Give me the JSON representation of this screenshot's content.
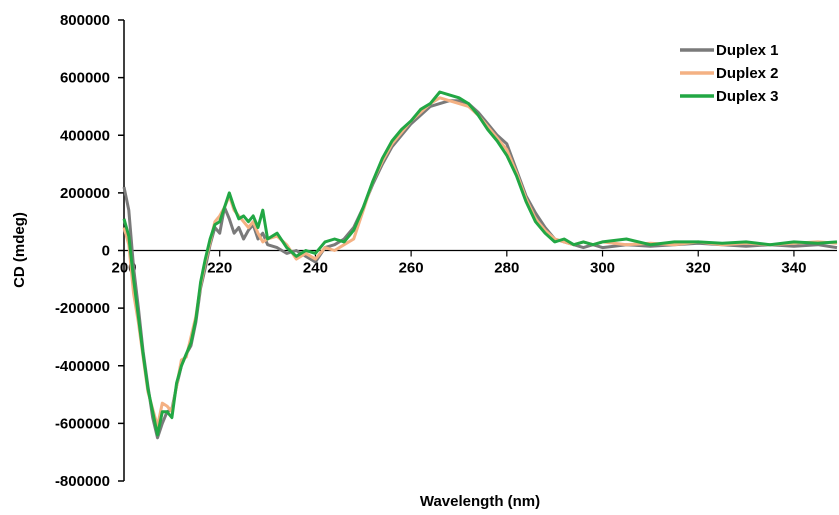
{
  "chart_data": {
    "type": "line",
    "title": "",
    "xlabel": "Wavelength  (nm)",
    "ylabel": "CD (mdeg)",
    "xlim": [
      200,
      349
    ],
    "ylim": [
      -800000,
      800000
    ],
    "x_ticks": [
      200,
      220,
      240,
      260,
      280,
      300,
      320,
      340
    ],
    "y_ticks": [
      800000,
      600000,
      400000,
      200000,
      0,
      -200000,
      -400000,
      -600000,
      -800000
    ],
    "grid": false,
    "legend_position": "top-right",
    "series": [
      {
        "name": "Duplex 1",
        "color": "#7a7a7a",
        "x": [
          200,
          201,
          202,
          203,
          204,
          205,
          206,
          207,
          208,
          209,
          210,
          211,
          212,
          213,
          214,
          215,
          216,
          217,
          218,
          219,
          220,
          221,
          222,
          223,
          224,
          225,
          226,
          227,
          228,
          229,
          230,
          232,
          234,
          236,
          238,
          240,
          242,
          244,
          246,
          248,
          250,
          252,
          254,
          256,
          258,
          260,
          262,
          264,
          266,
          268,
          270,
          272,
          274,
          276,
          278,
          280,
          282,
          284,
          286,
          288,
          290,
          292,
          294,
          296,
          298,
          300,
          305,
          310,
          315,
          320,
          325,
          330,
          335,
          340,
          345,
          349
        ],
        "y": [
          220000,
          140000,
          -60000,
          -200000,
          -350000,
          -470000,
          -580000,
          -650000,
          -600000,
          -560000,
          -550000,
          -470000,
          -400000,
          -360000,
          -330000,
          -250000,
          -130000,
          -60000,
          20000,
          80000,
          60000,
          150000,
          110000,
          60000,
          80000,
          40000,
          70000,
          90000,
          40000,
          60000,
          20000,
          10000,
          -10000,
          0,
          -20000,
          -40000,
          10000,
          20000,
          40000,
          80000,
          150000,
          230000,
          300000,
          360000,
          400000,
          440000,
          470000,
          500000,
          510000,
          520000,
          520000,
          510000,
          480000,
          440000,
          400000,
          370000,
          280000,
          190000,
          130000,
          80000,
          40000,
          30000,
          20000,
          10000,
          20000,
          10000,
          20000,
          15000,
          20000,
          25000,
          20000,
          15000,
          20000,
          15000,
          20000,
          10000
        ]
      },
      {
        "name": "Duplex 2",
        "color": "#f4b183",
        "x": [
          200,
          201,
          202,
          203,
          204,
          205,
          206,
          207,
          208,
          209,
          210,
          211,
          212,
          213,
          214,
          215,
          216,
          217,
          218,
          219,
          220,
          221,
          222,
          223,
          224,
          225,
          226,
          227,
          228,
          229,
          230,
          232,
          234,
          236,
          238,
          240,
          242,
          244,
          246,
          248,
          250,
          252,
          254,
          256,
          258,
          260,
          262,
          264,
          266,
          268,
          270,
          272,
          274,
          276,
          278,
          280,
          282,
          284,
          286,
          288,
          290,
          292,
          294,
          296,
          298,
          300,
          305,
          310,
          315,
          320,
          325,
          330,
          335,
          340,
          345,
          349
        ],
        "y": [
          80000,
          20000,
          -150000,
          -250000,
          -370000,
          -490000,
          -550000,
          -610000,
          -530000,
          -540000,
          -560000,
          -470000,
          -380000,
          -370000,
          -300000,
          -230000,
          -120000,
          -40000,
          30000,
          100000,
          120000,
          150000,
          190000,
          140000,
          120000,
          100000,
          80000,
          100000,
          60000,
          30000,
          40000,
          50000,
          20000,
          -30000,
          -10000,
          -30000,
          10000,
          0,
          20000,
          40000,
          140000,
          240000,
          310000,
          370000,
          410000,
          450000,
          480000,
          510000,
          530000,
          520000,
          510000,
          500000,
          470000,
          430000,
          390000,
          350000,
          270000,
          180000,
          110000,
          70000,
          40000,
          30000,
          20000,
          30000,
          20000,
          30000,
          20000,
          25000,
          20000,
          30000,
          20000,
          25000,
          20000,
          25000,
          30000,
          25000
        ]
      },
      {
        "name": "Duplex 3",
        "color": "#22a744",
        "x": [
          200,
          201,
          202,
          203,
          204,
          205,
          206,
          207,
          208,
          209,
          210,
          211,
          212,
          213,
          214,
          215,
          216,
          217,
          218,
          219,
          220,
          221,
          222,
          223,
          224,
          225,
          226,
          227,
          228,
          229,
          230,
          232,
          234,
          236,
          238,
          240,
          242,
          244,
          246,
          248,
          250,
          252,
          254,
          256,
          258,
          260,
          262,
          264,
          266,
          268,
          270,
          272,
          274,
          276,
          278,
          280,
          282,
          284,
          286,
          288,
          290,
          292,
          294,
          296,
          298,
          300,
          305,
          310,
          315,
          320,
          325,
          330,
          335,
          340,
          345,
          349
        ],
        "y": [
          110000,
          50000,
          -100000,
          -230000,
          -360000,
          -480000,
          -560000,
          -640000,
          -560000,
          -560000,
          -580000,
          -460000,
          -400000,
          -360000,
          -320000,
          -240000,
          -110000,
          -30000,
          40000,
          90000,
          100000,
          150000,
          200000,
          150000,
          110000,
          120000,
          100000,
          120000,
          80000,
          140000,
          40000,
          60000,
          10000,
          -20000,
          0,
          -10000,
          30000,
          40000,
          30000,
          70000,
          150000,
          240000,
          320000,
          380000,
          420000,
          450000,
          490000,
          510000,
          550000,
          540000,
          530000,
          510000,
          470000,
          420000,
          380000,
          330000,
          260000,
          170000,
          100000,
          60000,
          30000,
          40000,
          20000,
          30000,
          20000,
          30000,
          40000,
          20000,
          30000,
          30000,
          25000,
          30000,
          20000,
          30000,
          25000,
          30000
        ]
      }
    ]
  }
}
